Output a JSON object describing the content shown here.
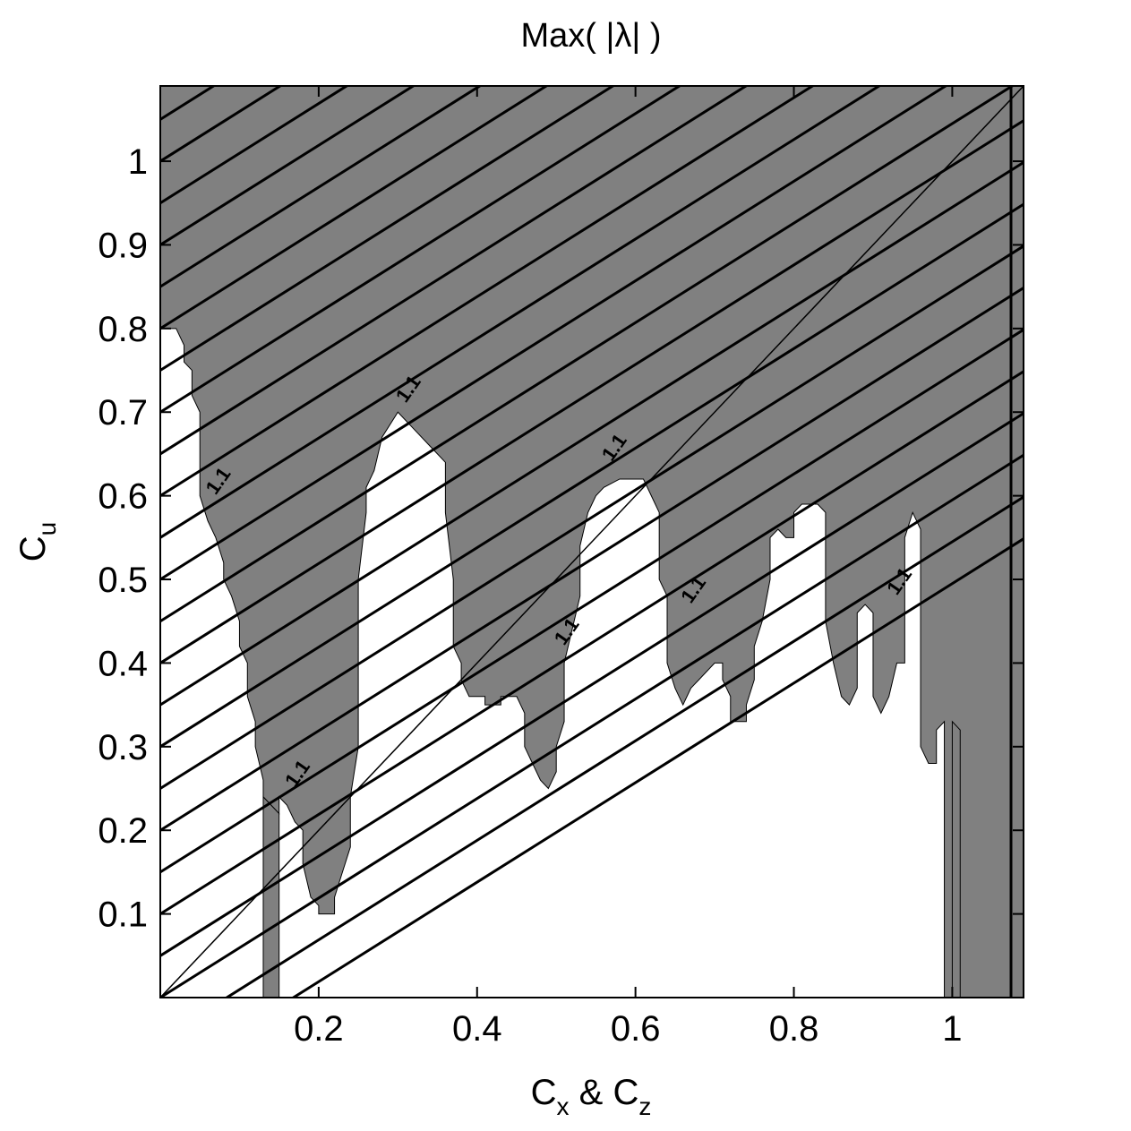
{
  "chart_data": {
    "type": "area",
    "title": "Max( |λ| )",
    "xlabel": {
      "main": "C",
      "sub1": "x",
      "mid": " & C",
      "sub2": "z"
    },
    "ylabel": {
      "main": "C",
      "sub": "u"
    },
    "xlim": [
      0,
      1.09
    ],
    "ylim": [
      0,
      1.09
    ],
    "xticks": [
      0.2,
      0.4,
      0.6,
      0.8,
      1
    ],
    "xtick_labels": [
      "0.2",
      "0.4",
      "0.6",
      "0.8",
      "1"
    ],
    "yticks": [
      0.1,
      0.2,
      0.3,
      0.4,
      0.5,
      0.6,
      0.7,
      0.8,
      0.9,
      1
    ],
    "ytick_labels": [
      "0.1",
      "0.2",
      "0.3",
      "0.4",
      "0.5",
      "0.6",
      "0.7",
      "0.8",
      "0.9",
      "1"
    ],
    "fill_color": "#808080",
    "grid": false,
    "shaded_region_boundary": [
      [
        0.0,
        0.8
      ],
      [
        0.02,
        0.8
      ],
      [
        0.03,
        0.78
      ],
      [
        0.03,
        0.76
      ],
      [
        0.04,
        0.75
      ],
      [
        0.04,
        0.72
      ],
      [
        0.05,
        0.7
      ],
      [
        0.05,
        0.6
      ],
      [
        0.06,
        0.57
      ],
      [
        0.07,
        0.55
      ],
      [
        0.08,
        0.52
      ],
      [
        0.08,
        0.5
      ],
      [
        0.09,
        0.48
      ],
      [
        0.1,
        0.45
      ],
      [
        0.1,
        0.42
      ],
      [
        0.11,
        0.4
      ],
      [
        0.11,
        0.36
      ],
      [
        0.12,
        0.33
      ],
      [
        0.12,
        0.3
      ],
      [
        0.13,
        0.26
      ],
      [
        0.13,
        0.24
      ],
      [
        0.14,
        0.23
      ],
      [
        0.15,
        0.22
      ],
      [
        0.15,
        0.24
      ],
      [
        0.16,
        0.23
      ],
      [
        0.17,
        0.21
      ],
      [
        0.18,
        0.2
      ],
      [
        0.18,
        0.16
      ],
      [
        0.19,
        0.12
      ],
      [
        0.2,
        0.11
      ],
      [
        0.2,
        0.1
      ],
      [
        0.22,
        0.1
      ],
      [
        0.22,
        0.12
      ],
      [
        0.23,
        0.15
      ],
      [
        0.24,
        0.18
      ],
      [
        0.24,
        0.24
      ],
      [
        0.25,
        0.3
      ],
      [
        0.25,
        0.5
      ],
      [
        0.26,
        0.58
      ],
      [
        0.26,
        0.61
      ],
      [
        0.27,
        0.63
      ],
      [
        0.28,
        0.67
      ],
      [
        0.3,
        0.7
      ],
      [
        0.32,
        0.68
      ],
      [
        0.34,
        0.66
      ],
      [
        0.36,
        0.64
      ],
      [
        0.36,
        0.58
      ],
      [
        0.37,
        0.5
      ],
      [
        0.37,
        0.42
      ],
      [
        0.38,
        0.4
      ],
      [
        0.38,
        0.38
      ],
      [
        0.39,
        0.36
      ],
      [
        0.41,
        0.36
      ],
      [
        0.41,
        0.35
      ],
      [
        0.43,
        0.35
      ],
      [
        0.43,
        0.36
      ],
      [
        0.45,
        0.36
      ],
      [
        0.46,
        0.34
      ],
      [
        0.46,
        0.3
      ],
      [
        0.47,
        0.28
      ],
      [
        0.48,
        0.26
      ],
      [
        0.49,
        0.25
      ],
      [
        0.5,
        0.27
      ],
      [
        0.5,
        0.3
      ],
      [
        0.51,
        0.33
      ],
      [
        0.51,
        0.4
      ],
      [
        0.52,
        0.44
      ],
      [
        0.53,
        0.48
      ],
      [
        0.53,
        0.54
      ],
      [
        0.54,
        0.58
      ],
      [
        0.55,
        0.6
      ],
      [
        0.56,
        0.61
      ],
      [
        0.58,
        0.62
      ],
      [
        0.61,
        0.62
      ],
      [
        0.62,
        0.6
      ],
      [
        0.63,
        0.58
      ],
      [
        0.63,
        0.5
      ],
      [
        0.64,
        0.48
      ],
      [
        0.64,
        0.4
      ],
      [
        0.65,
        0.37
      ],
      [
        0.66,
        0.35
      ],
      [
        0.67,
        0.37
      ],
      [
        0.68,
        0.38
      ],
      [
        0.7,
        0.4
      ],
      [
        0.71,
        0.4
      ],
      [
        0.71,
        0.38
      ],
      [
        0.72,
        0.36
      ],
      [
        0.72,
        0.33
      ],
      [
        0.74,
        0.33
      ],
      [
        0.74,
        0.35
      ],
      [
        0.75,
        0.38
      ],
      [
        0.75,
        0.42
      ],
      [
        0.76,
        0.45
      ],
      [
        0.77,
        0.5
      ],
      [
        0.77,
        0.55
      ],
      [
        0.78,
        0.56
      ],
      [
        0.79,
        0.55
      ],
      [
        0.8,
        0.55
      ],
      [
        0.8,
        0.58
      ],
      [
        0.81,
        0.59
      ],
      [
        0.83,
        0.59
      ],
      [
        0.84,
        0.58
      ],
      [
        0.84,
        0.45
      ],
      [
        0.85,
        0.4
      ],
      [
        0.86,
        0.36
      ],
      [
        0.87,
        0.35
      ],
      [
        0.88,
        0.37
      ],
      [
        0.88,
        0.46
      ],
      [
        0.89,
        0.47
      ],
      [
        0.9,
        0.46
      ],
      [
        0.9,
        0.36
      ],
      [
        0.91,
        0.34
      ],
      [
        0.92,
        0.36
      ],
      [
        0.93,
        0.4
      ],
      [
        0.94,
        0.4
      ],
      [
        0.94,
        0.55
      ],
      [
        0.95,
        0.58
      ],
      [
        0.96,
        0.56
      ],
      [
        0.96,
        0.3
      ],
      [
        0.97,
        0.28
      ],
      [
        0.98,
        0.28
      ],
      [
        0.98,
        0.32
      ],
      [
        0.99,
        0.33
      ],
      [
        0.99,
        0.0
      ],
      [
        1.01,
        0.0
      ],
      [
        1.01,
        0.32
      ],
      [
        1.0,
        0.33
      ],
      [
        1.0,
        0.0
      ],
      [
        1.09,
        0.0
      ],
      [
        1.09,
        1.09
      ],
      [
        0.0,
        1.09
      ]
    ],
    "secondary_shaded_strip": [
      [
        0.13,
        0.0
      ],
      [
        0.15,
        0.0
      ],
      [
        0.15,
        0.22
      ],
      [
        0.13,
        0.24
      ]
    ],
    "diagonal_reference_line": [
      [
        0.0,
        0.0
      ],
      [
        1.09,
        1.09
      ]
    ],
    "contour_label": "1.1",
    "contour_label_positions": [
      [
        0.07,
        0.6
      ],
      [
        0.17,
        0.25
      ],
      [
        0.31,
        0.71
      ],
      [
        0.51,
        0.42
      ],
      [
        0.57,
        0.64
      ],
      [
        0.67,
        0.47
      ],
      [
        0.93,
        0.48
      ]
    ],
    "hatch": {
      "direction": "diagonal",
      "spacing": 0.05,
      "slope": 0.595
    }
  }
}
